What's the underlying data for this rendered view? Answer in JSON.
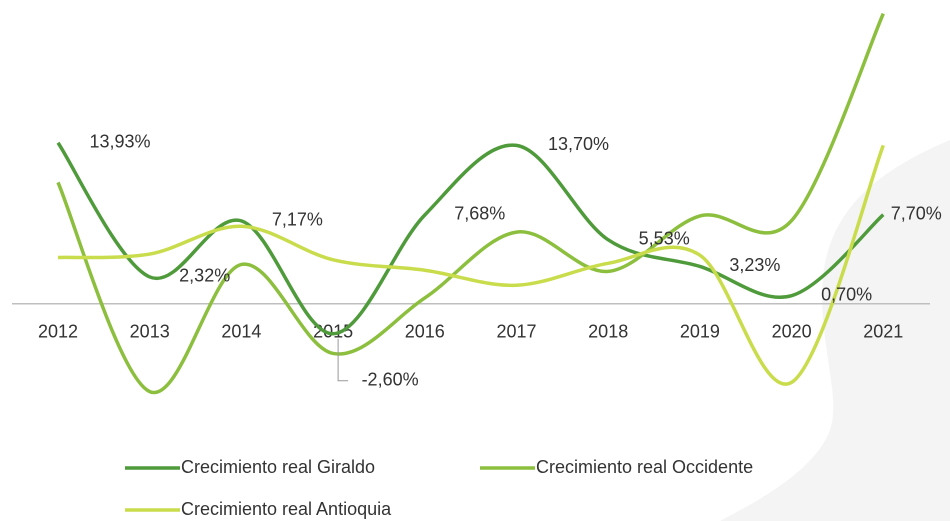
{
  "chart_data": {
    "type": "line",
    "categories": [
      "2012",
      "2013",
      "2014",
      "2015",
      "2016",
      "2017",
      "2018",
      "2019",
      "2020",
      "2021"
    ],
    "series": [
      {
        "name": "Crecimiento real Giraldo",
        "color": "#4f9b3b",
        "values": [
          13.93,
          2.32,
          7.17,
          -2.6,
          7.68,
          13.7,
          5.53,
          3.23,
          0.7,
          7.7
        ],
        "value_labels": [
          "13,93%",
          "2,32%",
          "7,17%",
          "-2,60%",
          "7,68%",
          "13,70%",
          "5,53%",
          "3,23%",
          "0,70%",
          "7,70%"
        ]
      },
      {
        "name": "Crecimiento real Occidente",
        "color": "#8dbf3f",
        "values": [
          10.5,
          -7.6,
          3.4,
          -4.3,
          0.5,
          6.2,
          2.8,
          7.6,
          7.2,
          25.1
        ]
      },
      {
        "name": "Crecimiento real Antioquia",
        "color": "#c9dc4c",
        "values": [
          4.0,
          4.3,
          6.7,
          3.8,
          2.9,
          1.6,
          3.5,
          4.2,
          -6.8,
          13.7
        ]
      }
    ],
    "ylim": [
      -8.5,
      25.5
    ],
    "legend": "bottom"
  }
}
